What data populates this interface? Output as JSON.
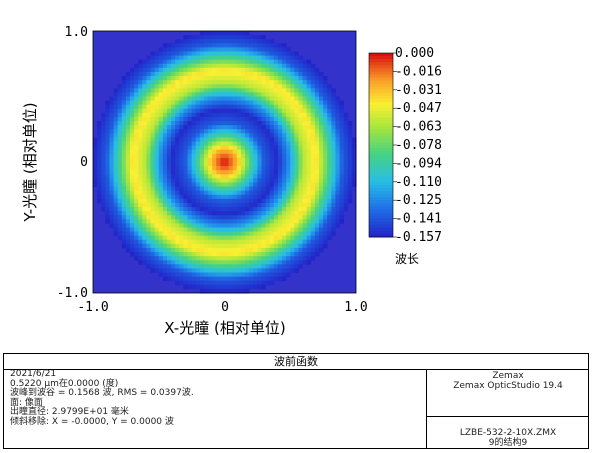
{
  "chart_data": {
    "type": "heatmap",
    "xlabel": "X-光瞳 (相对单位)",
    "ylabel": "Y-光瞳 (相对单位)",
    "xlim": [
      -1.0,
      1.0
    ],
    "ylim": [
      -1.0,
      1.0
    ],
    "x_ticks": [
      "-1.0",
      "0",
      "1.0"
    ],
    "y_ticks": [
      "1.0",
      "0",
      "-1.0"
    ],
    "colorbar": {
      "title": "波长",
      "max": 0.0,
      "min": -0.157,
      "tick_labels": [
        "0.000",
        "-0.016",
        "-0.031",
        "-0.047",
        "-0.063",
        "-0.078",
        "-0.094",
        "-0.110",
        "-0.125",
        "-0.141",
        "-0.157"
      ]
    },
    "wavefront": {
      "description_values": {
        "peak_to_valley": 0.1568,
        "rms": 0.0397
      },
      "radial_profile": {
        "rho": [
          0.0,
          0.1,
          0.2,
          0.3,
          0.4,
          0.5,
          0.6,
          0.7,
          0.8,
          0.9,
          1.0
        ],
        "value": [
          0.0,
          -0.03,
          -0.09,
          -0.14,
          -0.155,
          -0.12,
          -0.06,
          -0.04,
          -0.09,
          -0.14,
          -0.157
        ]
      },
      "outside_pupil_color": "#3333cc"
    }
  },
  "info": {
    "title": "波前函数",
    "lines": [
      "2021/6/21",
      "0.5220 µm在0.0000 (度)",
      "波峰到波谷 = 0.1568 波, RMS = 0.0397波.",
      "面: 像面",
      "出瞳直径: 2.9799E+01 毫米",
      "倾斜移除: X = -0.0000, Y = 0.0000 波"
    ],
    "right_top": [
      "Zemax",
      "Zemax OpticStudio 19.4"
    ],
    "right_bottom": [
      "LZBE-532-2-10X.ZMX",
      "9的结构9"
    ]
  }
}
